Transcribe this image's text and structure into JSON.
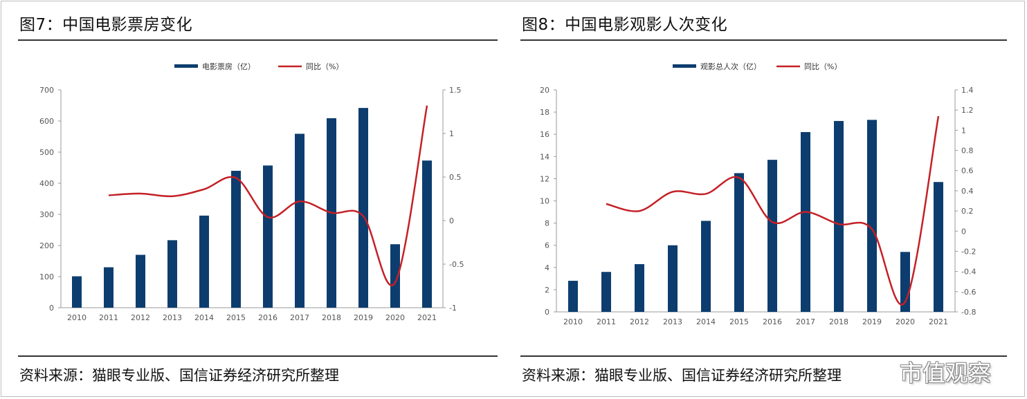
{
  "watermark": "市值观察",
  "colors": {
    "bar": "#0d3d6e",
    "line": "#c42026",
    "axis": "#999999",
    "tick_text": "#555555"
  },
  "panels": [
    {
      "title": "图7：中国电影票房变化",
      "source": "资料来源：猫眼专业版、国信证券经济研究所整理",
      "chart_data": {
        "type": "bar",
        "categories": [
          "2010",
          "2011",
          "2012",
          "2013",
          "2014",
          "2015",
          "2016",
          "2017",
          "2018",
          "2019",
          "2020",
          "2021"
        ],
        "series": [
          {
            "name": "电影票房（亿）",
            "type": "bar",
            "axis": "left",
            "values": [
              101,
              130,
              170,
              217,
              296,
              440,
              457,
              559,
              609,
              642,
              204,
              473
            ]
          },
          {
            "name": "同比（%）",
            "type": "line",
            "axis": "right",
            "values": [
              null,
              0.29,
              0.31,
              0.28,
              0.36,
              0.49,
              0.04,
              0.22,
              0.09,
              0.05,
              -0.71,
              1.32
            ]
          }
        ],
        "y_left": {
          "min": 0,
          "max": 700,
          "step": 100,
          "ticks": [
            "0",
            "100",
            "200",
            "300",
            "400",
            "500",
            "600",
            "700"
          ]
        },
        "y_right": {
          "min": -1,
          "max": 1.5,
          "step": 0.5,
          "ticks": [
            "-1",
            "-0.5",
            "0",
            "0.5",
            "1",
            "1.5"
          ]
        },
        "legend_position": "top-center",
        "grid": false
      }
    },
    {
      "title": "图8：中国电影观影人次变化",
      "source": "资料来源：猫眼专业版、国信证券经济研究所整理",
      "chart_data": {
        "type": "bar",
        "categories": [
          "2010",
          "2011",
          "2012",
          "2013",
          "2014",
          "2015",
          "2016",
          "2017",
          "2018",
          "2019",
          "2020",
          "2021"
        ],
        "series": [
          {
            "name": "观影总人次（亿）",
            "type": "bar",
            "axis": "left",
            "values": [
              2.8,
              3.6,
              4.3,
              6.0,
              8.2,
              12.5,
              13.7,
              16.2,
              17.2,
              17.3,
              5.4,
              11.7
            ]
          },
          {
            "name": "同比（%）",
            "type": "line",
            "axis": "right",
            "values": [
              null,
              0.27,
              0.2,
              0.39,
              0.37,
              0.53,
              0.09,
              0.19,
              0.07,
              0.02,
              -0.7,
              1.14
            ]
          }
        ],
        "y_left": {
          "min": 0,
          "max": 20,
          "step": 2,
          "ticks": [
            "0",
            "2",
            "4",
            "6",
            "8",
            "10",
            "12",
            "14",
            "16",
            "18",
            "20"
          ]
        },
        "y_right": {
          "min": -0.8,
          "max": 1.4,
          "step": 0.2,
          "ticks": [
            "-0.8",
            "-0.6",
            "-0.4",
            "-0.2",
            "0",
            "0.2",
            "0.4",
            "0.6",
            "0.8",
            "1",
            "1.2",
            "1.4"
          ]
        },
        "legend_position": "top-center",
        "grid": false
      }
    }
  ]
}
